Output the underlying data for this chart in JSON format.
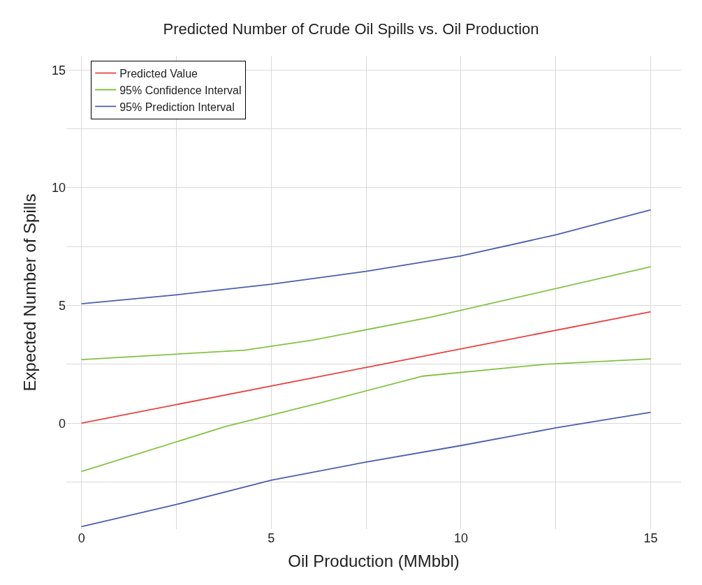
{
  "chart_data": {
    "type": "line",
    "title": "Predicted Number of Crude Oil Spills vs. Oil Production",
    "xlabel": "Oil Production (MMbbl)",
    "ylabel": "Expected Number of Spills",
    "xlim": [
      -0.4,
      15.8
    ],
    "ylim": [
      -4.5,
      15.6
    ],
    "xticks": [
      0,
      {
        "value": 2.5,
        "label": null
      },
      5,
      {
        "value": 7.5,
        "label": null
      },
      10,
      {
        "value": 12.5,
        "label": null
      },
      15
    ],
    "yticks": [
      {
        "value": -2.5,
        "label": null
      },
      0,
      {
        "value": 2.5,
        "label": null
      },
      5,
      {
        "value": 7.5,
        "label": null
      },
      10,
      {
        "value": 12.5,
        "label": null
      },
      15
    ],
    "grid": true,
    "legend": "top left",
    "marker": "none",
    "line_style": "solid",
    "series": [
      {
        "name": "Predicted Value",
        "color": "#e8423f",
        "x": [
          0,
          7.5,
          15
        ],
        "values": [
          0,
          2.37,
          4.73
        ]
      },
      {
        "name": "95% Confidence Interval",
        "color": "#82c341",
        "x": [
          0,
          4.3,
          6.1,
          9.2,
          15
        ],
        "values": [
          2.7,
          3.1,
          3.53,
          4.5,
          6.64
        ]
      },
      {
        "color": "#82c341",
        "x": [
          0,
          3.8,
          6.4,
          9.0,
          12.2,
          15
        ],
        "values": [
          -2.05,
          -0.14,
          0.91,
          2.0,
          2.5,
          2.73
        ]
      },
      {
        "name": "95% Prediction Interval",
        "color": "#4a5fad",
        "x": [
          0,
          2.5,
          5,
          7.5,
          10,
          12.5,
          15
        ],
        "values": [
          5.07,
          5.45,
          5.9,
          6.45,
          7.1,
          8.0,
          9.06
        ]
      },
      {
        "color": "#4a5fad",
        "x": [
          0,
          2.5,
          5,
          7.5,
          10,
          12.5,
          15
        ],
        "values": [
          -4.39,
          -3.45,
          -2.42,
          -1.65,
          -0.95,
          -0.2,
          0.46
        ]
      }
    ]
  }
}
